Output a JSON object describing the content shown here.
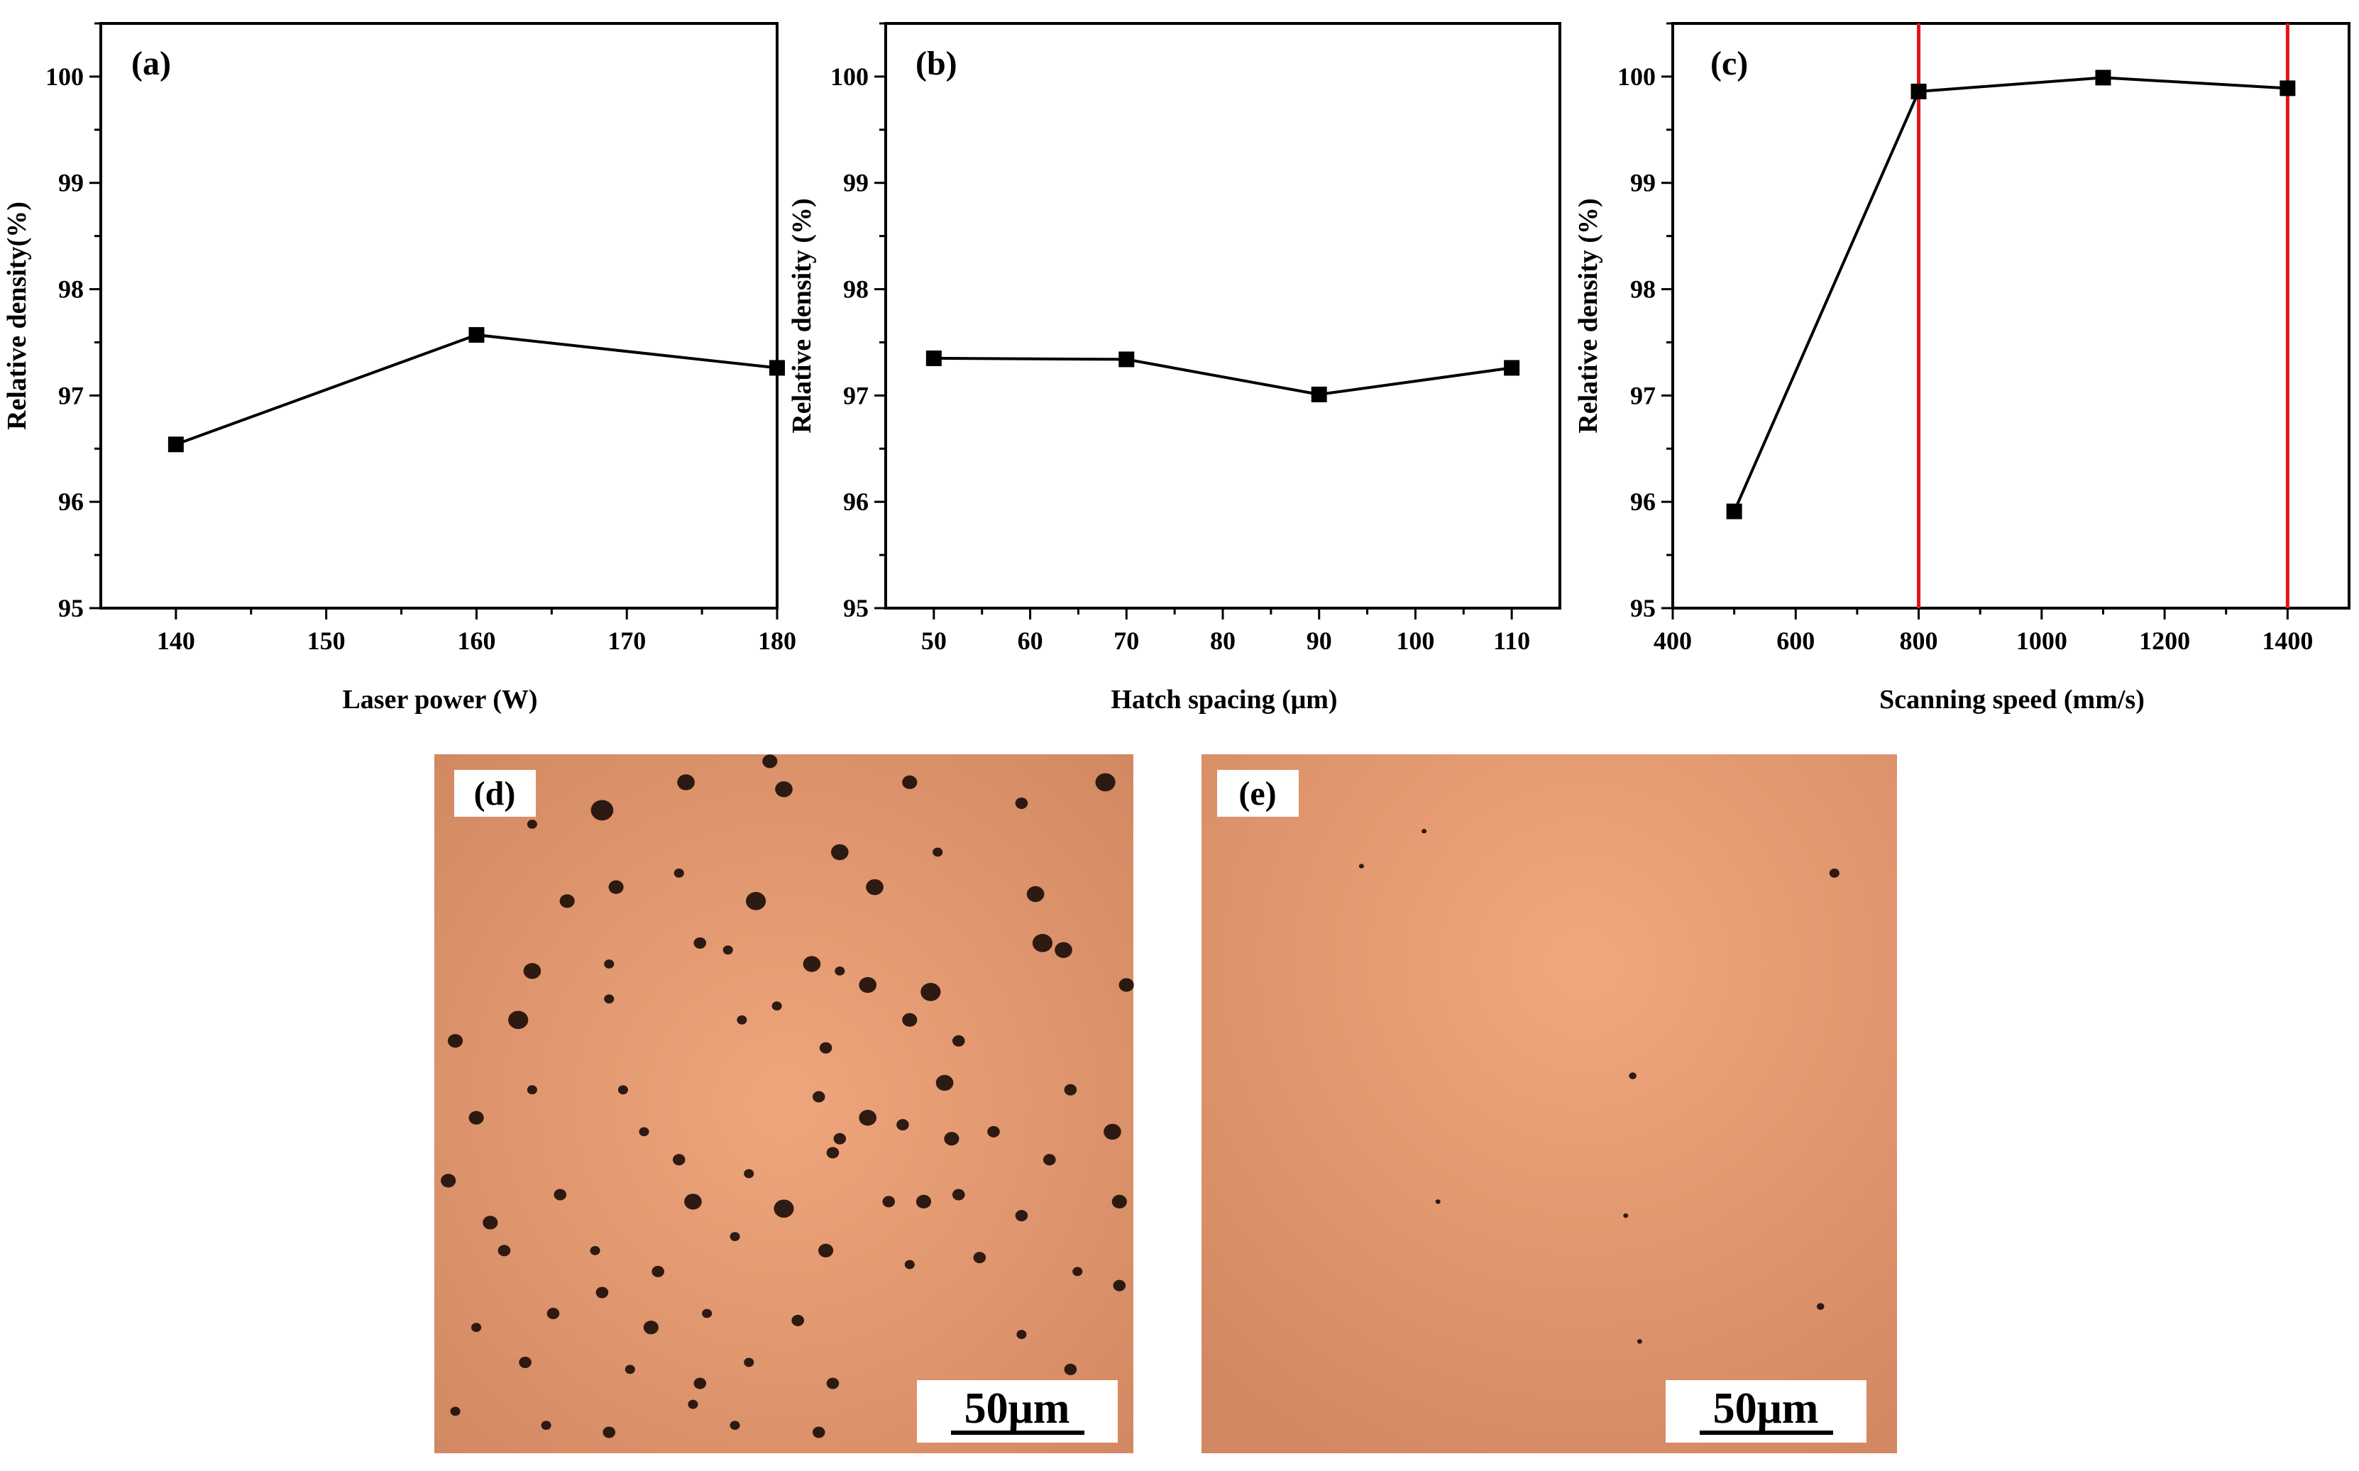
{
  "figure": {
    "panels": [
      "(a)",
      "(b)",
      "(c)",
      "(d)",
      "(e)"
    ],
    "scale_bar_label": "50μm"
  },
  "chart_data": [
    {
      "type": "line",
      "panel_label": "(a)",
      "xlabel": "Laser power (W)",
      "ylabel": "Relative density(%)",
      "x": [
        140,
        160,
        180
      ],
      "series": [
        {
          "values": [
            96.54,
            97.57,
            97.26
          ]
        }
      ],
      "xlim": [
        135,
        180
      ],
      "ylim": [
        95,
        100.5
      ],
      "xticks": [
        140,
        150,
        160,
        170,
        180
      ],
      "yticks": [
        95,
        96,
        97,
        98,
        99,
        100
      ],
      "marker": "square",
      "line_color": "#000000",
      "grid": false
    },
    {
      "type": "line",
      "panel_label": "(b)",
      "xlabel": "Hatch spacing (μm)",
      "ylabel": "Relative density (%)",
      "x": [
        50,
        70,
        90,
        110
      ],
      "series": [
        {
          "values": [
            97.35,
            97.34,
            97.01,
            97.26
          ]
        }
      ],
      "xlim": [
        45,
        115
      ],
      "ylim": [
        95,
        100.5
      ],
      "xticks": [
        50,
        60,
        70,
        80,
        90,
        100,
        110
      ],
      "yticks": [
        95,
        96,
        97,
        98,
        99,
        100
      ],
      "marker": "square",
      "line_color": "#000000",
      "grid": false
    },
    {
      "type": "line",
      "panel_label": "(c)",
      "xlabel": "Scanning speed (mm/s)",
      "ylabel": "Relative density (%)",
      "x": [
        500,
        800,
        1100,
        1400
      ],
      "series": [
        {
          "values": [
            95.91,
            99.86,
            99.99,
            99.89
          ]
        }
      ],
      "xlim": [
        400,
        1500
      ],
      "ylim": [
        95,
        100.5
      ],
      "xticks": [
        400,
        600,
        800,
        1000,
        1200,
        1400
      ],
      "yticks": [
        95,
        96,
        97,
        98,
        99,
        100
      ],
      "vlines": [
        800,
        1400
      ],
      "vline_color": "#e0141c",
      "marker": "square",
      "line_color": "#000000",
      "grid": false
    }
  ],
  "colors": {
    "micrograph_base": "#d9926c",
    "micrograph_light": "#f0a67c",
    "pore": "#1d0f0a"
  },
  "micrographs": [
    {
      "label": "(d)",
      "pores": [
        [
          0.24,
          0.08,
          9
        ],
        [
          0.36,
          0.04,
          7
        ],
        [
          0.48,
          0.01,
          6
        ],
        [
          0.5,
          0.05,
          7
        ],
        [
          0.68,
          0.04,
          6
        ],
        [
          0.96,
          0.04,
          8
        ],
        [
          0.14,
          0.1,
          4
        ],
        [
          0.84,
          0.07,
          5
        ],
        [
          0.35,
          0.17,
          4
        ],
        [
          0.58,
          0.14,
          7
        ],
        [
          0.63,
          0.19,
          7
        ],
        [
          0.72,
          0.14,
          4
        ],
        [
          0.86,
          0.2,
          7
        ],
        [
          0.19,
          0.21,
          6
        ],
        [
          0.46,
          0.21,
          8
        ],
        [
          0.38,
          0.27,
          5
        ],
        [
          0.42,
          0.28,
          4
        ],
        [
          0.25,
          0.3,
          4
        ],
        [
          0.14,
          0.31,
          7
        ],
        [
          0.54,
          0.3,
          7
        ],
        [
          0.9,
          0.28,
          7
        ],
        [
          0.99,
          0.33,
          6
        ],
        [
          0.87,
          0.27,
          8
        ],
        [
          0.68,
          0.38,
          6
        ],
        [
          0.12,
          0.38,
          8
        ],
        [
          0.58,
          0.31,
          4
        ],
        [
          0.25,
          0.35,
          4
        ],
        [
          0.26,
          0.19,
          6
        ],
        [
          0.62,
          0.33,
          7
        ],
        [
          0.71,
          0.34,
          8
        ],
        [
          0.44,
          0.38,
          4
        ],
        [
          0.49,
          0.36,
          4
        ],
        [
          0.75,
          0.41,
          5
        ],
        [
          0.03,
          0.41,
          6
        ],
        [
          0.56,
          0.42,
          5
        ],
        [
          0.14,
          0.48,
          4
        ],
        [
          0.73,
          0.47,
          7
        ],
        [
          0.27,
          0.48,
          4
        ],
        [
          0.91,
          0.48,
          5
        ],
        [
          0.06,
          0.52,
          6
        ],
        [
          0.3,
          0.54,
          4
        ],
        [
          0.55,
          0.49,
          5
        ],
        [
          0.62,
          0.52,
          7
        ],
        [
          0.58,
          0.55,
          5
        ],
        [
          0.67,
          0.53,
          5
        ],
        [
          0.74,
          0.55,
          6
        ],
        [
          0.57,
          0.57,
          5
        ],
        [
          0.8,
          0.54,
          5
        ],
        [
          0.97,
          0.54,
          7
        ],
        [
          0.88,
          0.58,
          5
        ],
        [
          0.35,
          0.58,
          5
        ],
        [
          0.45,
          0.6,
          4
        ],
        [
          0.18,
          0.63,
          5
        ],
        [
          0.02,
          0.61,
          6
        ],
        [
          0.08,
          0.67,
          6
        ],
        [
          0.37,
          0.64,
          7
        ],
        [
          0.5,
          0.65,
          8
        ],
        [
          0.65,
          0.64,
          5
        ],
        [
          0.7,
          0.64,
          6
        ],
        [
          0.75,
          0.63,
          5
        ],
        [
          0.84,
          0.66,
          5
        ],
        [
          0.98,
          0.64,
          6
        ],
        [
          0.1,
          0.71,
          5
        ],
        [
          0.23,
          0.71,
          4
        ],
        [
          0.32,
          0.74,
          5
        ],
        [
          0.43,
          0.69,
          4
        ],
        [
          0.56,
          0.71,
          6
        ],
        [
          0.68,
          0.73,
          4
        ],
        [
          0.78,
          0.72,
          5
        ],
        [
          0.92,
          0.74,
          4
        ],
        [
          0.06,
          0.82,
          4
        ],
        [
          0.17,
          0.8,
          5
        ],
        [
          0.24,
          0.77,
          5
        ],
        [
          0.31,
          0.82,
          6
        ],
        [
          0.39,
          0.8,
          4
        ],
        [
          0.52,
          0.81,
          5
        ],
        [
          0.98,
          0.76,
          5
        ],
        [
          0.13,
          0.87,
          5
        ],
        [
          0.28,
          0.88,
          4
        ],
        [
          0.38,
          0.9,
          5
        ],
        [
          0.45,
          0.87,
          4
        ],
        [
          0.57,
          0.9,
          5
        ],
        [
          0.84,
          0.83,
          4
        ],
        [
          0.91,
          0.88,
          5
        ],
        [
          0.03,
          0.94,
          4
        ],
        [
          0.16,
          0.96,
          4
        ],
        [
          0.25,
          0.97,
          5
        ],
        [
          0.37,
          0.93,
          4
        ],
        [
          0.43,
          0.96,
          4
        ],
        [
          0.55,
          0.97,
          5
        ]
      ]
    },
    {
      "label": "(e)",
      "pores": [
        [
          0.32,
          0.11,
          2
        ],
        [
          0.23,
          0.16,
          2
        ],
        [
          0.91,
          0.17,
          4
        ],
        [
          0.62,
          0.46,
          3
        ],
        [
          0.34,
          0.64,
          2
        ],
        [
          0.61,
          0.66,
          2
        ],
        [
          0.89,
          0.79,
          3
        ],
        [
          0.63,
          0.84,
          2
        ]
      ]
    }
  ]
}
